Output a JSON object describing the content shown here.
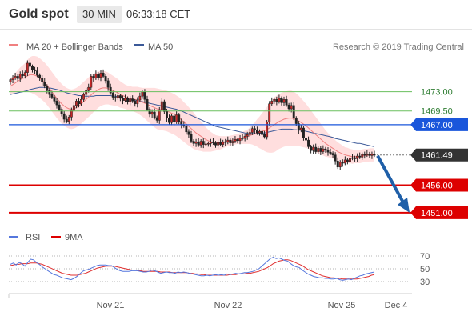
{
  "header": {
    "title": "Gold spot",
    "timeframe": "30 MIN",
    "time": "06:33:18 CET"
  },
  "colors": {
    "up_candle": "#c62828",
    "bb_fill": "#ffdede",
    "ma20": "#f08080",
    "ma50": "#3b5998",
    "support": "#dd0000",
    "pivot": "#1a56db",
    "resist": "#6abf5e",
    "arrow": "#1f5fa8",
    "rsi": "#5577dd",
    "rsi_ma": "#e03030"
  },
  "chart_data": [
    {
      "type": "candlestick",
      "legend": [
        {
          "label": "MA 20 + Bollinger Bands",
          "color": "#f08080"
        },
        {
          "label": "MA 50",
          "color": "#3b5998"
        }
      ],
      "legend_position": "top-left",
      "attribution": "Research © 2019 Trading Central",
      "x_tick_labels": [
        "Nov 21",
        "Nov 22",
        "Nov 25",
        "Dec 4"
      ],
      "ylim": [
        1448.5,
        1479.5
      ],
      "levels": [
        {
          "label": "1473.00",
          "value": 1473.0,
          "kind": "resistance"
        },
        {
          "label": "1469.50",
          "value": 1469.5,
          "kind": "resistance"
        },
        {
          "label": "1467.00",
          "value": 1467.0,
          "kind": "pivot"
        },
        {
          "label": "1461.49",
          "value": 1461.49,
          "kind": "last"
        },
        {
          "label": "1456.00",
          "value": 1456.0,
          "kind": "support"
        },
        {
          "label": "1451.00",
          "value": 1451.0,
          "kind": "support"
        }
      ],
      "close": [
        1475.2,
        1475.5,
        1475.8,
        1475.4,
        1476.2,
        1475.9,
        1476.5,
        1478.2,
        1477.6,
        1477.0,
        1476.8,
        1476.0,
        1475.5,
        1474.8,
        1474.0,
        1473.2,
        1472.5,
        1472.0,
        1471.3,
        1470.6,
        1469.8,
        1469.0,
        1468.0,
        1467.6,
        1468.4,
        1469.6,
        1470.5,
        1471.3,
        1470.8,
        1471.6,
        1472.5,
        1473.2,
        1473.8,
        1475.8,
        1475.5,
        1476.2,
        1475.6,
        1476.4,
        1475.8,
        1475.0,
        1473.8,
        1472.8,
        1472.0,
        1471.9,
        1472.3,
        1471.8,
        1471.4,
        1471.8,
        1471.2,
        1471.7,
        1471.3,
        1470.8,
        1471.5,
        1472.2,
        1473.0,
        1471.6,
        1469.8,
        1468.9,
        1469.3,
        1468.3,
        1467.8,
        1469.7,
        1471.2,
        1469.4,
        1468.2,
        1467.4,
        1468.6,
        1467.5,
        1468.8,
        1467.6,
        1467.0,
        1466.8,
        1465.7,
        1465.2,
        1464.0,
        1463.6,
        1463.9,
        1463.3,
        1464.0,
        1463.4,
        1463.5,
        1463.6,
        1463.9,
        1463.7,
        1463.3,
        1463.8,
        1463.4,
        1463.9,
        1463.8,
        1464.2,
        1463.7,
        1464.0,
        1464.3,
        1464.1,
        1464.6,
        1464.5,
        1464.9,
        1465.2,
        1465.6,
        1466.3,
        1466.0,
        1465.5,
        1465.8,
        1465.2,
        1464.8,
        1467.5,
        1470.8,
        1471.3,
        1471.6,
        1471.2,
        1471.8,
        1471.0,
        1471.6,
        1470.6,
        1469.9,
        1470.5,
        1468.2,
        1467.2,
        1466.0,
        1466.4,
        1464.6,
        1464.2,
        1463.0,
        1462.3,
        1462.9,
        1462.1,
        1462.7,
        1462.1,
        1462.6,
        1462.4,
        1462.0,
        1461.8,
        1461.5,
        1460.4,
        1459.3,
        1460.2,
        1460.0,
        1460.6,
        1460.3,
        1460.9,
        1461.0,
        1460.8,
        1461.3,
        1461.1,
        1461.6,
        1461.5,
        1461.7,
        1461.4,
        1461.6,
        1461.49
      ],
      "ma20": [
        1474.0,
        1474.3,
        1474.6,
        1474.9,
        1475.2,
        1475.4,
        1475.6,
        1475.9,
        1476.1,
        1476.1,
        1476.0,
        1475.8,
        1475.5,
        1475.1,
        1474.7,
        1474.2,
        1473.6,
        1473.0,
        1472.4,
        1471.8,
        1471.3,
        1470.8,
        1470.4,
        1470.1,
        1469.9,
        1469.8,
        1469.9,
        1470.1,
        1470.4,
        1470.8,
        1471.2,
        1471.6,
        1472.0,
        1472.4,
        1472.8,
        1473.1,
        1473.4,
        1473.6,
        1473.7,
        1473.7,
        1473.6,
        1473.4,
        1473.2,
        1473.0,
        1472.8,
        1472.5,
        1472.3,
        1472.1,
        1471.9,
        1471.8,
        1471.7,
        1471.6,
        1471.5,
        1471.3,
        1471.1,
        1470.9,
        1470.7,
        1470.5,
        1470.3,
        1470.1,
        1469.9,
        1469.8,
        1469.7,
        1469.6,
        1469.5,
        1469.3,
        1469.1,
        1468.9,
        1468.6,
        1468.3,
        1467.9,
        1467.5,
        1467.1,
        1466.7,
        1466.3,
        1465.9,
        1465.5,
        1465.2,
        1464.9,
        1464.6,
        1464.3,
        1464.1,
        1463.9,
        1463.8,
        1463.7,
        1463.7,
        1463.7,
        1463.8,
        1463.9,
        1464.0,
        1464.1,
        1464.2,
        1464.3,
        1464.4,
        1464.5,
        1464.6,
        1464.7,
        1464.8,
        1465.0,
        1465.2,
        1465.3,
        1465.5,
        1465.6,
        1465.8,
        1465.9,
        1466.1,
        1466.4,
        1466.7,
        1467.0,
        1467.3,
        1467.6,
        1467.8,
        1468.0,
        1468.1,
        1468.2,
        1468.2,
        1468.1,
        1467.9,
        1467.7,
        1467.4,
        1467.1,
        1466.8,
        1466.4,
        1466.0,
        1465.6,
        1465.2,
        1464.8,
        1464.4,
        1464.0,
        1463.6,
        1463.3,
        1463.0,
        1462.7,
        1462.4,
        1462.1,
        1461.9,
        1461.7,
        1461.5,
        1461.4,
        1461.3,
        1461.2,
        1461.2,
        1461.2,
        1461.2,
        1461.3,
        1461.4,
        1461.4,
        1461.5,
        1461.5,
        1461.5
      ],
      "ma50": [
        1472.5,
        1472.6,
        1472.7,
        1472.8,
        1472.9,
        1473.0,
        1473.1,
        1473.2,
        1473.4,
        1473.5,
        1473.6,
        1473.7,
        1473.8,
        1473.8,
        1473.8,
        1473.7,
        1473.7,
        1473.6,
        1473.5,
        1473.4,
        1473.3,
        1473.1,
        1473.0,
        1472.8,
        1472.7,
        1472.6,
        1472.5,
        1472.4,
        1472.3,
        1472.3,
        1472.2,
        1472.2,
        1472.2,
        1472.2,
        1472.2,
        1472.3,
        1472.3,
        1472.3,
        1472.3,
        1472.3,
        1472.3,
        1472.3,
        1472.2,
        1472.2,
        1472.1,
        1472.0,
        1471.9,
        1471.8,
        1471.7,
        1471.6,
        1471.5,
        1471.5,
        1471.4,
        1471.3,
        1471.2,
        1471.1,
        1471.0,
        1470.9,
        1470.8,
        1470.7,
        1470.6,
        1470.5,
        1470.4,
        1470.3,
        1470.2,
        1470.1,
        1470.0,
        1469.9,
        1469.8,
        1469.6,
        1469.5,
        1469.3,
        1469.1,
        1468.9,
        1468.7,
        1468.5,
        1468.3,
        1468.1,
        1467.9,
        1467.7,
        1467.5,
        1467.3,
        1467.1,
        1466.9,
        1466.7,
        1466.6,
        1466.5,
        1466.4,
        1466.3,
        1466.2,
        1466.1,
        1466.0,
        1465.9,
        1465.8,
        1465.7,
        1465.6,
        1465.5,
        1465.4,
        1465.4,
        1465.4,
        1465.4,
        1465.4,
        1465.4,
        1465.5,
        1465.5,
        1465.6,
        1465.7,
        1465.8,
        1465.9,
        1466.0,
        1466.1,
        1466.2,
        1466.2,
        1466.2,
        1466.2,
        1466.2,
        1466.1,
        1466.1,
        1466.0,
        1466.0,
        1465.9,
        1465.8,
        1465.7,
        1465.6,
        1465.5,
        1465.4,
        1465.3,
        1465.2,
        1465.1,
        1465.0,
        1464.9,
        1464.8,
        1464.7,
        1464.5,
        1464.4,
        1464.3,
        1464.2,
        1464.1,
        1464.0,
        1463.9,
        1463.8,
        1463.7,
        1463.6,
        1463.6,
        1463.5,
        1463.4,
        1463.3,
        1463.2,
        1463.1,
        1463.0
      ],
      "bb_width": [
        1.5,
        1.6,
        1.8,
        2.0,
        2.2,
        2.4,
        2.6,
        2.9,
        3.2,
        3.4,
        3.5,
        3.6,
        3.6,
        3.6,
        3.6,
        3.6,
        3.6,
        3.6,
        3.6,
        3.6,
        3.6,
        3.6,
        3.6,
        3.6,
        3.6,
        3.6,
        3.6,
        3.6,
        3.6,
        3.6,
        3.6,
        3.6,
        3.6,
        3.6,
        3.5,
        3.4,
        3.3,
        3.2,
        3.1,
        3.0,
        2.9,
        2.8,
        2.7,
        2.6,
        2.5,
        2.4,
        2.3,
        2.2,
        2.2,
        2.2,
        2.2,
        2.3,
        2.4,
        2.5,
        2.6,
        2.8,
        3.0,
        3.2,
        3.4,
        3.6,
        3.7,
        3.7,
        3.7,
        3.7,
        3.7,
        3.7,
        3.7,
        3.7,
        3.7,
        3.7,
        3.7,
        3.6,
        3.6,
        3.5,
        3.4,
        3.3,
        3.1,
        2.9,
        2.7,
        2.5,
        2.2,
        2.0,
        1.8,
        1.6,
        1.4,
        1.3,
        1.2,
        1.1,
        1.0,
        0.9,
        0.9,
        0.9,
        0.9,
        0.9,
        1.0,
        1.1,
        1.2,
        1.3,
        1.5,
        1.8,
        2.1,
        2.5,
        2.9,
        3.3,
        3.7,
        4.1,
        4.5,
        4.8,
        5.0,
        5.0,
        5.0,
        5.0,
        5.0,
        5.0,
        5.0,
        5.0,
        4.9,
        4.8,
        4.6,
        4.4,
        4.2,
        4.0,
        3.8,
        3.6,
        3.4,
        3.2,
        3.0,
        2.8,
        2.6,
        2.4,
        2.2,
        2.0,
        1.9,
        1.8,
        1.7,
        1.6,
        1.5,
        1.4,
        1.4,
        1.3,
        1.3,
        1.2,
        1.2,
        1.2,
        1.2,
        1.2,
        1.2,
        1.2,
        1.2,
        1.2
      ]
    },
    {
      "type": "line",
      "legend": [
        {
          "label": "RSI",
          "color": "#5577dd"
        },
        {
          "label": "9MA",
          "color": "#e03030"
        }
      ],
      "ylim": [
        20,
        80
      ],
      "y_ticks": [
        {
          "label": "70",
          "value": 70
        },
        {
          "label": "50",
          "value": 50
        },
        {
          "label": "30",
          "value": 30
        }
      ],
      "rsi": [
        57,
        59,
        56,
        60,
        58,
        54,
        60,
        65,
        64,
        60,
        57,
        53,
        50,
        47,
        44,
        41,
        40,
        38,
        36,
        35,
        34,
        33,
        35,
        38,
        42,
        46,
        48,
        49,
        51,
        53,
        55,
        56,
        56,
        56,
        55,
        55,
        52,
        49,
        47,
        46,
        46,
        46,
        47,
        47,
        47,
        46,
        45,
        45,
        46,
        48,
        47,
        45,
        43,
        44,
        45,
        44,
        44,
        43,
        45,
        44,
        45,
        44,
        43,
        42,
        41,
        40,
        39,
        39,
        40,
        39,
        40,
        41,
        40,
        41,
        40,
        42,
        41,
        42,
        43,
        42,
        43,
        44,
        44,
        45,
        46,
        48,
        50,
        54,
        58,
        62,
        66,
        68,
        66,
        67,
        65,
        63,
        62,
        58,
        55,
        53,
        52,
        48,
        45,
        42,
        40,
        38,
        37,
        36,
        36,
        35,
        35,
        34,
        34,
        35,
        33,
        32,
        33,
        34,
        33,
        35,
        37,
        39,
        40,
        42,
        43,
        44,
        45
      ],
      "rsi_ma": [
        55,
        56,
        57,
        57,
        58,
        58,
        58,
        59,
        59,
        59,
        58,
        57,
        55,
        53,
        51,
        49,
        47,
        45,
        43,
        42,
        41,
        40,
        40,
        40,
        41,
        42,
        43,
        45,
        47,
        49,
        51,
        52,
        53,
        54,
        54,
        54,
        54,
        53,
        52,
        51,
        50,
        49,
        48,
        48,
        47,
        47,
        46,
        46,
        46,
        46,
        46,
        46,
        45,
        45,
        45,
        45,
        44,
        44,
        44,
        44,
        44,
        44,
        43,
        43,
        42,
        42,
        41,
        41,
        40,
        40,
        40,
        40,
        40,
        40,
        40,
        40,
        41,
        41,
        41,
        42,
        42,
        42,
        43,
        43,
        44,
        45,
        46,
        48,
        50,
        52,
        55,
        58,
        60,
        62,
        63,
        64,
        64,
        63,
        61,
        59,
        57,
        55,
        52,
        49,
        47,
        45,
        43,
        41,
        39,
        38,
        37,
        36,
        36,
        35,
        35,
        34,
        34,
        34,
        34,
        34,
        34,
        35,
        36,
        37,
        38,
        40,
        41
      ]
    }
  ]
}
